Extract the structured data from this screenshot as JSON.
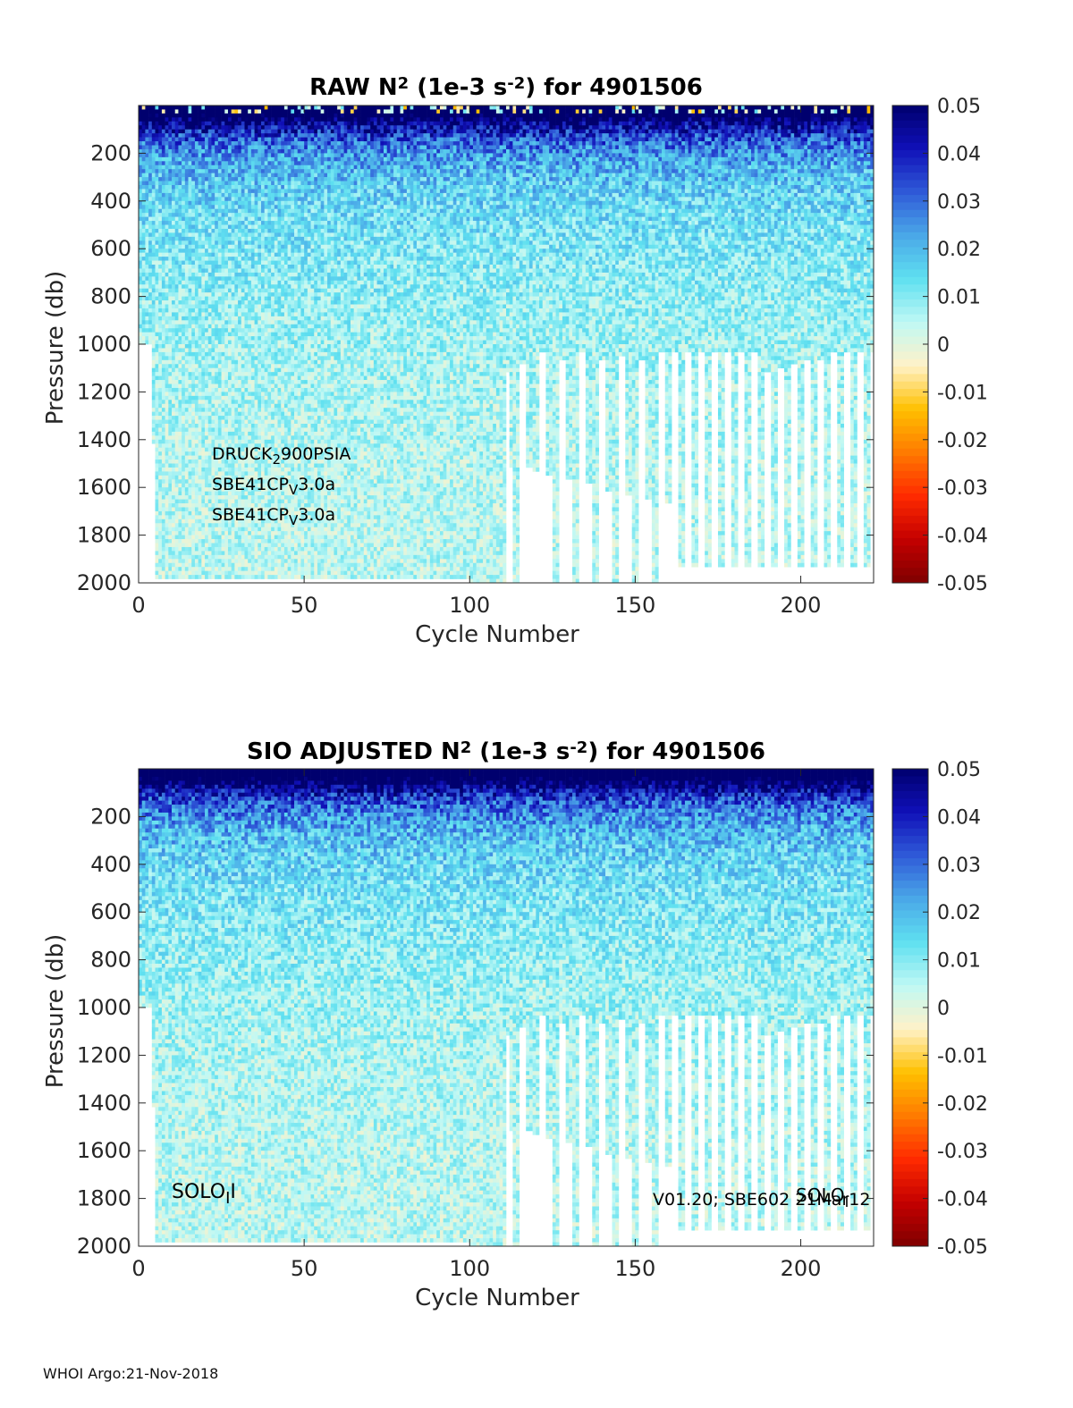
{
  "footer": "WHOI Argo:21-Nov-2018",
  "colors": {
    "colormap": [
      "#7f0000",
      "#c40000",
      "#ff2a00",
      "#ff7a00",
      "#ffc000",
      "#fff2c8",
      "#bff8f4",
      "#5fe0f0",
      "#4aa8e8",
      "#2f5ad8",
      "#1010b8",
      "#00006e"
    ]
  },
  "chart_data": [
    {
      "type": "heatmap",
      "title": {
        "prefix": "RAW N",
        "sup1": "2",
        "mid": " (1e-3 s",
        "sup2": "-2",
        "suffix": ") for 4901506"
      },
      "xlabel": "Cycle Number",
      "ylabel": "Pressure (db)",
      "xlim": [
        0,
        222
      ],
      "ylim": [
        2000,
        0
      ],
      "xticks": [
        0,
        50,
        100,
        150,
        200
      ],
      "yticks": [
        200,
        400,
        600,
        800,
        1000,
        1200,
        1400,
        1600,
        1800,
        2000
      ],
      "colorbar": {
        "clim": [
          -0.05,
          0.05
        ],
        "ticks": [
          "0.05",
          "0.04",
          "0.03",
          "0.02",
          "0.01",
          "0",
          "-0.01",
          "-0.02",
          "-0.03",
          "-0.04",
          "-0.05"
        ]
      },
      "annotations": [
        {
          "parts": [
            {
              "t": "DRUCK"
            },
            {
              "t": "2",
              "sub": true
            },
            {
              "t": "900PSIA"
            }
          ]
        },
        {
          "parts": [
            {
              "t": "SBE41CP"
            },
            {
              "t": "V",
              "sub": true
            },
            {
              "t": "3.0a"
            }
          ]
        },
        {
          "parts": [
            {
              "t": "SBE41CP"
            },
            {
              "t": "V",
              "sub": true
            },
            {
              "t": "3.0a"
            }
          ]
        }
      ],
      "profile_depth": {
        "cycles": [
          1,
          4,
          5,
          100,
          110,
          111,
          112,
          113,
          115,
          117,
          119,
          121,
          123,
          125,
          127,
          129,
          131,
          133,
          135,
          137,
          139,
          141,
          143,
          145,
          147,
          149,
          151,
          153,
          155,
          157,
          159,
          161,
          163,
          165,
          167,
          169,
          171,
          173,
          175,
          177,
          179,
          181,
          183,
          185,
          187,
          189,
          191,
          193,
          195,
          197,
          199,
          201,
          203,
          205,
          207,
          209,
          211,
          213,
          215,
          217,
          219,
          221
        ],
        "max_pressure_db": [
          1000,
          1400,
          1980,
          1985,
          1990,
          1100,
          1500,
          1990,
          1080,
          1500,
          1520,
          1030,
          1540,
          1990,
          1050,
          1560,
          1990,
          1030,
          1580,
          1990,
          1060,
          1600,
          1990,
          1040,
          1620,
          1990,
          1060,
          1640,
          1990,
          1030,
          1660,
          1030,
          1920,
          1030,
          1920,
          1020,
          1920,
          1020,
          1920,
          1020,
          1920,
          1020,
          1920,
          1020,
          1920,
          1100,
          1920,
          1090,
          1920,
          1080,
          1920,
          1060,
          1920,
          1050,
          1920,
          1030,
          1920,
          1020,
          1920,
          1020,
          1920,
          1020
        ]
      }
    },
    {
      "type": "heatmap",
      "title": {
        "prefix": "SIO  ADJUSTED N",
        "sup1": "2",
        "mid": " (1e-3 s",
        "sup2": "-2",
        "suffix": ") for 4901506"
      },
      "xlabel": "Cycle Number",
      "ylabel": "Pressure (db)",
      "xlim": [
        0,
        222
      ],
      "ylim": [
        2000,
        0
      ],
      "xticks": [
        0,
        50,
        100,
        150,
        200
      ],
      "yticks": [
        200,
        400,
        600,
        800,
        1000,
        1200,
        1400,
        1600,
        1800,
        2000
      ],
      "colorbar": {
        "clim": [
          -0.05,
          0.05
        ],
        "ticks": [
          "0.05",
          "0.04",
          "0.03",
          "0.02",
          "0.01",
          "0",
          "-0.01",
          "-0.02",
          "-0.03",
          "-0.04",
          "-0.05"
        ]
      },
      "annotations": [
        {
          "parts": [
            {
              "t": "SOLO"
            },
            {
              "t": "I",
              "sub": true
            },
            {
              "t": "I"
            }
          ]
        },
        {
          "parts": [
            {
              "t": "SOLO"
            },
            {
              "t": "I",
              "sub": true
            }
          ]
        },
        {
          "parts": [
            {
              "t": "V01.20; SBE602 21Mar12"
            }
          ]
        }
      ],
      "profile_depth": {
        "cycles": [
          1,
          4,
          5,
          100,
          110,
          111,
          112,
          113,
          115,
          117,
          119,
          121,
          123,
          125,
          127,
          129,
          131,
          133,
          135,
          137,
          139,
          141,
          143,
          145,
          147,
          149,
          151,
          153,
          155,
          157,
          159,
          161,
          163,
          165,
          167,
          169,
          171,
          173,
          175,
          177,
          179,
          181,
          183,
          185,
          187,
          189,
          191,
          193,
          195,
          197,
          199,
          201,
          203,
          205,
          207,
          209,
          211,
          213,
          215,
          217,
          219,
          221
        ],
        "max_pressure_db": [
          1000,
          1400,
          1980,
          1985,
          1990,
          1100,
          1500,
          1990,
          1080,
          1500,
          1520,
          1030,
          1540,
          1990,
          1050,
          1560,
          1990,
          1030,
          1580,
          1990,
          1060,
          1600,
          1990,
          1040,
          1620,
          1990,
          1060,
          1640,
          1990,
          1030,
          1660,
          1030,
          1920,
          1030,
          1920,
          1020,
          1920,
          1020,
          1920,
          1020,
          1920,
          1020,
          1920,
          1020,
          1920,
          1100,
          1920,
          1090,
          1920,
          1080,
          1920,
          1060,
          1920,
          1050,
          1920,
          1030,
          1920,
          1020,
          1920,
          1020,
          1920,
          1020
        ]
      }
    }
  ]
}
